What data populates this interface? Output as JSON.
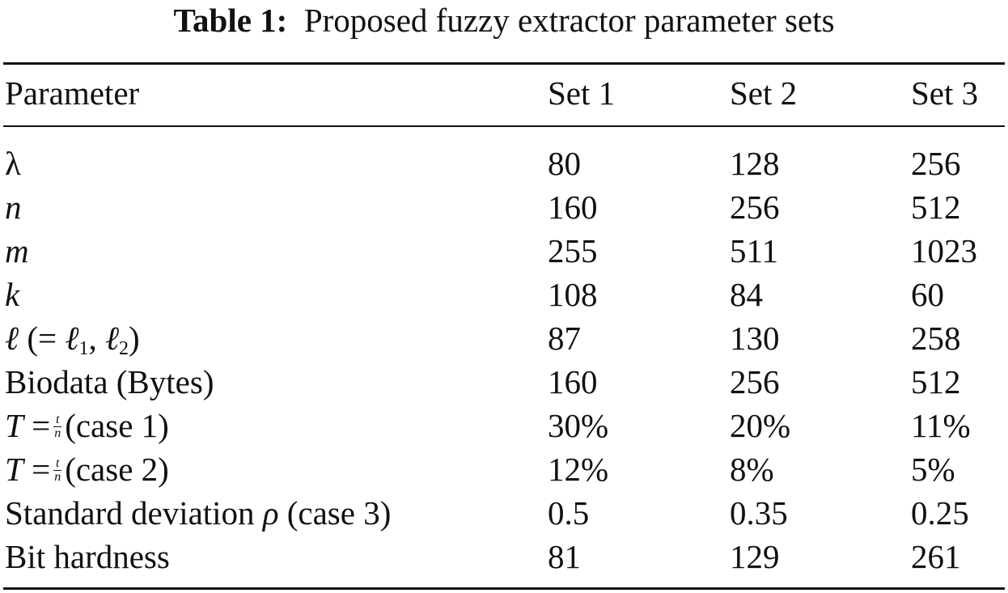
{
  "caption": {
    "label": "Table 1:",
    "text": "Proposed fuzzy extractor parameter sets"
  },
  "table": {
    "columns": [
      "Parameter",
      "Set 1",
      "Set 2",
      "Set 3"
    ],
    "rows": [
      {
        "parameter": {
          "symbol": "λ"
        },
        "values": [
          "80",
          "128",
          "256"
        ]
      },
      {
        "parameter": {
          "symbol": "n"
        },
        "values": [
          "160",
          "256",
          "512"
        ]
      },
      {
        "parameter": {
          "symbol": "m"
        },
        "values": [
          "255",
          "511",
          "1023"
        ]
      },
      {
        "parameter": {
          "symbol": "k"
        },
        "values": [
          "108",
          "84",
          "60"
        ]
      },
      {
        "parameter": {
          "symbol": "ℓ",
          "open": " (= ",
          "l1": "ℓ",
          "sub1": "1",
          "sep": ", ",
          "l2": "ℓ",
          "sub2": "2",
          "close": ")"
        },
        "values": [
          "87",
          "130",
          "258"
        ]
      },
      {
        "parameter": {
          "text": "Biodata (Bytes)"
        },
        "values": [
          "160",
          "256",
          "512"
        ]
      },
      {
        "parameter": {
          "lhs": "T",
          "eq": " =",
          "frac_num": "t",
          "frac_den": "n",
          "rest": "(case 1)"
        },
        "values": [
          "30%",
          "20%",
          "11%"
        ]
      },
      {
        "parameter": {
          "lhs": "T",
          "eq": " =",
          "frac_num": "t",
          "frac_den": "n",
          "rest": "(case 2)"
        },
        "values": [
          "12%",
          "8%",
          "5%"
        ]
      },
      {
        "parameter": {
          "pre": "Standard deviation ",
          "symbol": "ρ",
          "post": " (case 3)"
        },
        "values": [
          "0.5",
          "0.35",
          "0.25"
        ]
      },
      {
        "parameter": {
          "text": "Bit hardness"
        },
        "values": [
          "81",
          "129",
          "261"
        ]
      }
    ]
  }
}
